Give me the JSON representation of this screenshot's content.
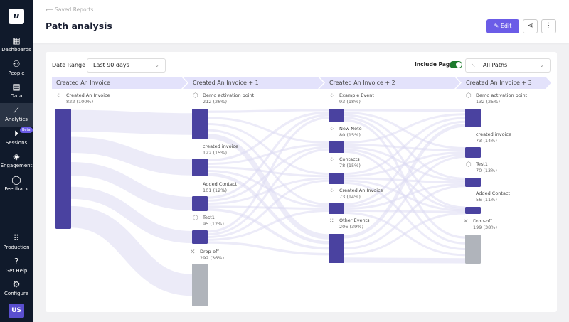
{
  "sidebar": {
    "logo": "u",
    "items": [
      {
        "label": "Dashboards",
        "icon": "dashboard-icon"
      },
      {
        "label": "People",
        "icon": "people-icon"
      },
      {
        "label": "Data",
        "icon": "data-icon"
      },
      {
        "label": "Analytics",
        "icon": "analytics-icon",
        "active": true
      },
      {
        "label": "Sessions",
        "icon": "play-icon",
        "badge": "Beta"
      },
      {
        "label": "Engagement",
        "icon": "layers-icon"
      },
      {
        "label": "Feedback",
        "icon": "chat-icon"
      }
    ],
    "bottom": [
      {
        "label": "Production",
        "icon": "grid-icon"
      },
      {
        "label": "Get Help",
        "icon": "help-icon"
      },
      {
        "label": "Configure",
        "icon": "gear-icon"
      }
    ],
    "avatar": "US"
  },
  "header": {
    "breadcrumb": "Saved Reports",
    "title": "Path analysis",
    "edit_label": "Edit"
  },
  "filters": {
    "date_range_label": "Date Range",
    "date_range_value": "Last 90 days",
    "include_pages_label": "Include Pages",
    "include_pages": true,
    "paths_value": "All Paths"
  },
  "colors": {
    "accent": "#6b5ce7",
    "node": "#4a42a0",
    "dropoff": "#b0b4bb",
    "column_header": "#e3e2fb",
    "link": "#dcdaf2"
  },
  "columns": [
    {
      "title": "Created An Invoice",
      "nodes": [
        {
          "name": "Created An Invoice",
          "value": "822 (100%)",
          "icon": "click-icon"
        }
      ]
    },
    {
      "title": "Created An Invoice + 1",
      "nodes": [
        {
          "name": "Demo activation point",
          "value": "212 (26%)",
          "icon": "cube-icon"
        },
        {
          "name": "created invoice",
          "value": "122 (15%)",
          "icon": "code-icon"
        },
        {
          "name": "Added Contact",
          "value": "101 (12%)",
          "icon": "code-icon"
        },
        {
          "name": "Test1",
          "value": "95 (12%)",
          "icon": "cube-icon"
        },
        {
          "name": "Drop-off",
          "value": "292 (36%)",
          "icon": "close-icon",
          "dropoff": true
        }
      ]
    },
    {
      "title": "Created An Invoice + 2",
      "nodes": [
        {
          "name": "Example Event",
          "value": "93 (18%)",
          "icon": "click-icon"
        },
        {
          "name": "New Note",
          "value": "80 (15%)",
          "icon": "click-icon"
        },
        {
          "name": "Contacts",
          "value": "78 (15%)",
          "icon": "click-icon"
        },
        {
          "name": "Created An Invoice",
          "value": "73 (14%)",
          "icon": "click-icon"
        },
        {
          "name": "Other Events",
          "value": "206 (39%)",
          "icon": "grid-icon"
        }
      ]
    },
    {
      "title": "Created An Invoice + 3",
      "nodes": [
        {
          "name": "Demo activation point",
          "value": "132 (25%)",
          "icon": "cube-icon"
        },
        {
          "name": "created invoice",
          "value": "73 (14%)",
          "icon": "code-icon"
        },
        {
          "name": "Test1",
          "value": "70 (13%)",
          "icon": "cube-icon"
        },
        {
          "name": "Added Contact",
          "value": "56 (11%)",
          "icon": "code-icon"
        },
        {
          "name": "Drop-off",
          "value": "199 (38%)",
          "icon": "close-icon",
          "dropoff": true
        }
      ]
    }
  ]
}
